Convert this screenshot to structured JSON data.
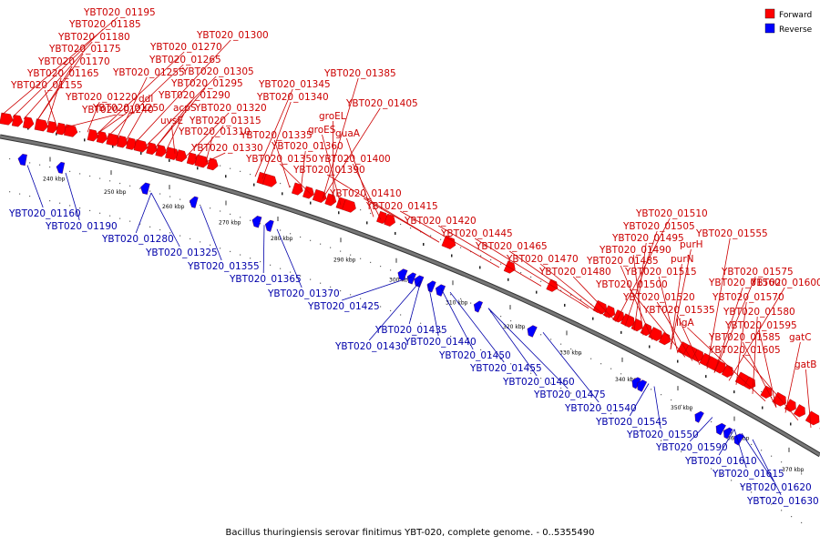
{
  "caption": "Bacillus thuringiensis serovar finitimus YBT-020, complete genome. - 0..5355490",
  "legend": [
    {
      "label": "Forward",
      "color": "#ff0000"
    },
    {
      "label": "Reverse",
      "color": "#0000ff"
    }
  ],
  "colors": {
    "forward": "#ff0000",
    "reverse": "#0000ff",
    "backbone": "#777777",
    "forward_text": "#cc0000",
    "reverse_text": "#0000aa"
  },
  "ticks": [
    "240 kbp",
    "250 kbp",
    "260 kbp",
    "270 kbp",
    "280 kbp",
    "290 kbp",
    "300 kbp",
    "310 kbp",
    "320 kbp",
    "330 kbp",
    "340 kbp",
    "350 kbp",
    "360 kbp",
    "370 kbp"
  ],
  "forward_labels": [
    "YBT020_01195",
    "YBT020_01185",
    "YBT020_01180",
    "YBT020_01175",
    "YBT020_01170",
    "YBT020_01165",
    "YBT020_01155",
    "YBT020_01240",
    "YBT020_01220",
    "YBT020_01250",
    "YBT020_01270",
    "YBT020_01265",
    "YBT020_01255",
    "ddl",
    "YBT020_01300",
    "YBT020_01305",
    "YBT020_01295",
    "YBT020_01290",
    "acpS",
    "uvsE",
    "YBT020_01320",
    "YBT020_01315",
    "YBT020_01310",
    "YBT020_01330",
    "YBT020_01345",
    "YBT020_01340",
    "YBT020_01335",
    "YBT020_01360",
    "YBT020_01350",
    "YBT020_01385",
    "YBT020_01405",
    "groEL",
    "groES",
    "guaA",
    "YBT020_01400",
    "YBT020_01390",
    "YBT020_01410",
    "YBT020_01415",
    "YBT020_01420",
    "YBT020_01445",
    "YBT020_01465",
    "YBT020_01470",
    "YBT020_01480",
    "YBT020_01510",
    "YBT020_01505",
    "YBT020_01495",
    "YBT020_01490",
    "YBT020_01485",
    "purH",
    "purN",
    "YBT020_01515",
    "YBT020_01500",
    "YBT020_01520",
    "YBT020_01535",
    "YBT020_01555",
    "YBT020_01575",
    "YBT020_01560",
    "YBT020_01600",
    "YBT020_01570",
    "YBT020_01580",
    "ligA",
    "YBT020_01595",
    "YBT020_01585",
    "gatC",
    "YBT020_01605",
    "gatB"
  ],
  "reverse_labels": [
    "YBT020_01160",
    "YBT020_01190",
    "YBT020_01280",
    "YBT020_01325",
    "YBT020_01355",
    "YBT020_01365",
    "YBT020_01370",
    "YBT020_01425",
    "YBT020_01435",
    "YBT020_01430",
    "YBT020_01440",
    "YBT020_01450",
    "YBT020_01455",
    "YBT020_01460",
    "YBT020_01475",
    "YBT020_01540",
    "YBT020_01545",
    "YBT020_01550",
    "YBT020_01590",
    "YBT020_01610",
    "YBT020_01615",
    "YBT020_01620",
    "YBT020_01630"
  ]
}
